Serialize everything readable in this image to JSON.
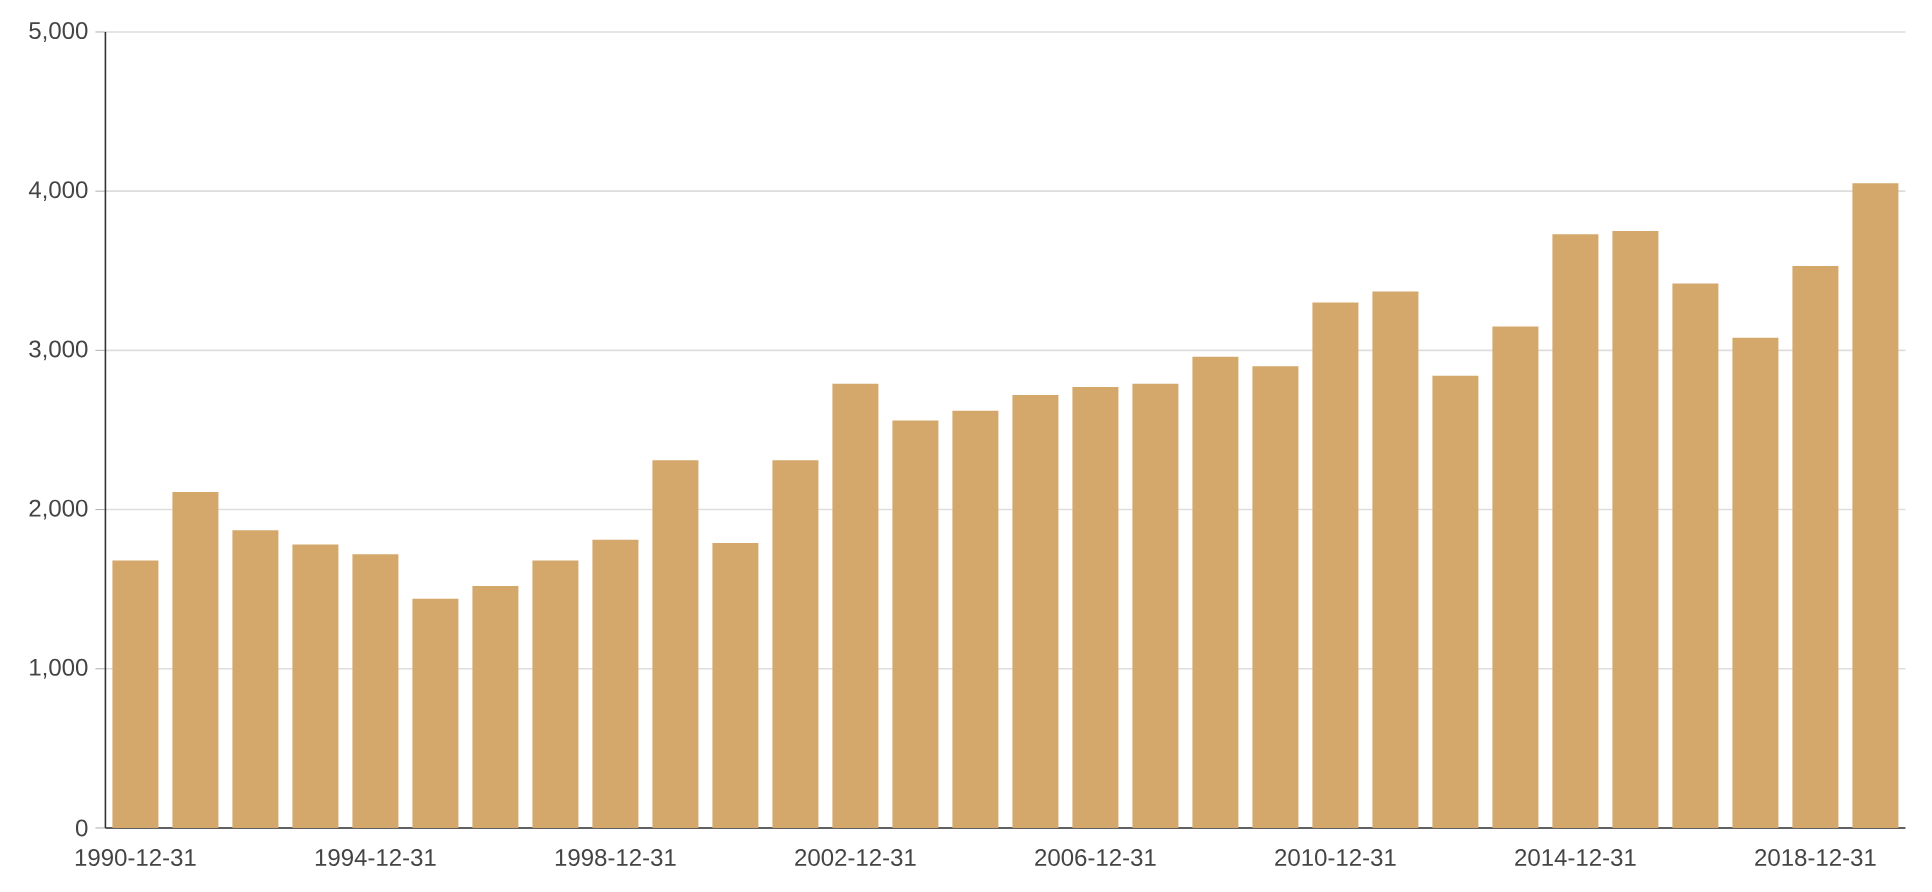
{
  "chart_data": {
    "type": "bar",
    "categories": [
      "1990-12-31",
      null,
      null,
      null,
      "1994-12-31",
      null,
      null,
      null,
      "1998-12-31",
      null,
      null,
      null,
      "2002-12-31",
      null,
      null,
      null,
      "2006-12-31",
      null,
      null,
      null,
      "2010-12-31",
      null,
      null,
      null,
      "2014-12-31",
      null,
      null,
      null,
      "2018-12-31",
      null
    ],
    "values": [
      1680,
      2110,
      1870,
      1780,
      1720,
      1440,
      1520,
      1680,
      1810,
      2310,
      1790,
      2310,
      2790,
      2560,
      2620,
      2720,
      2770,
      2790,
      2960,
      2900,
      3300,
      3370,
      2840,
      3150,
      3730,
      3750,
      3420,
      3080,
      3530,
      4050
    ],
    "color": "#d4a76a",
    "ylim": [
      0,
      5000
    ],
    "yticks": [
      {
        "value": 0,
        "label": "0"
      },
      {
        "value": 1000,
        "label": "1,000"
      },
      {
        "value": 2000,
        "label": "2,000"
      },
      {
        "value": 3000,
        "label": "3,000"
      },
      {
        "value": 4000,
        "label": "4,000"
      },
      {
        "value": 5000,
        "label": "5,000"
      }
    ],
    "grid": "y"
  }
}
